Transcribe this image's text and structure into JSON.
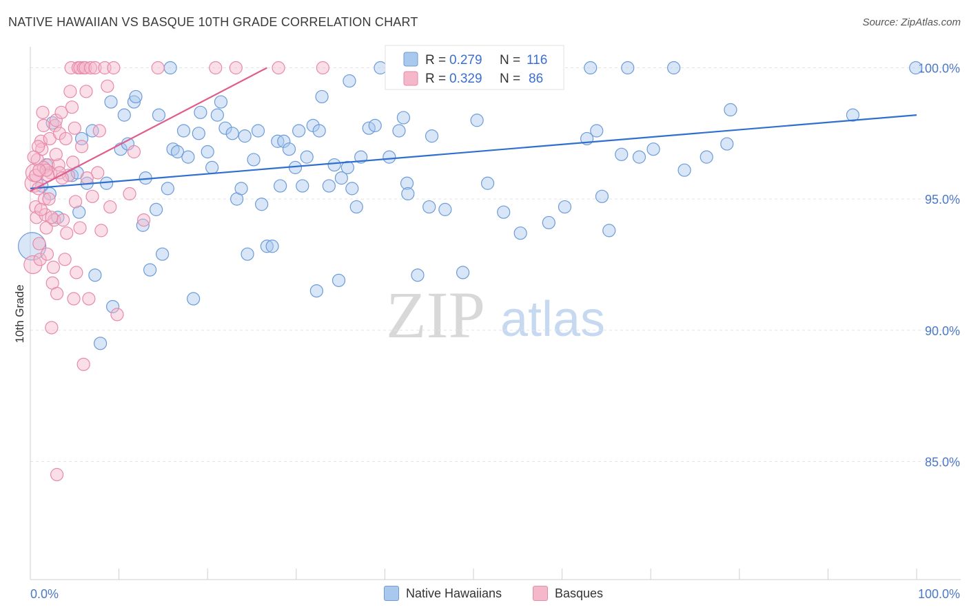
{
  "header": {
    "title": "NATIVE HAWAIIAN VS BASQUE 10TH GRADE CORRELATION CHART",
    "source": "Source: ZipAtlas.com"
  },
  "watermark": {
    "zip": "ZIP",
    "atlas": "atlas"
  },
  "colors": {
    "blue_fill": "#a9c8ee",
    "blue_stroke": "#6b9bd8",
    "blue_line": "#2f6fcf",
    "pink_fill": "#f5b8cb",
    "pink_stroke": "#e889a8",
    "pink_line": "#e05c8c",
    "tick": "#4a78c8"
  },
  "legend": {
    "r_label": "R =",
    "n_label": "N =",
    "items": [
      {
        "name": "Native Hawaiians",
        "r": "0.279",
        "n": "116"
      },
      {
        "name": "Basques",
        "r": "0.329",
        "n": "86"
      }
    ]
  },
  "chart_data": {
    "type": "scatter",
    "title": "NATIVE HAWAIIAN VS BASQUE 10TH GRADE CORRELATION CHART",
    "xlabel": "",
    "ylabel": "10th Grade",
    "xlim": [
      0,
      100
    ],
    "ylim": [
      80.5,
      100.8
    ],
    "x_tick_labels": [
      "0.0%",
      "100.0%"
    ],
    "y_ticks": [
      85,
      90,
      95,
      100
    ],
    "y_tick_labels": [
      "85.0%",
      "90.0%",
      "95.0%",
      "100.0%"
    ],
    "grid": true,
    "legend_position": "top-center",
    "series": [
      {
        "name": "Native Hawaiians",
        "r": 0.279,
        "n": 116,
        "trend": {
          "x": [
            0,
            100
          ],
          "y": [
            95.4,
            98.2
          ]
        },
        "points": [
          [
            0.2,
            93.2,
            3
          ],
          [
            1.3,
            95.5,
            1
          ],
          [
            1.8,
            96.3,
            1
          ],
          [
            2.2,
            95.2,
            1
          ],
          [
            2.5,
            97.9,
            1
          ],
          [
            3.1,
            94.3,
            1
          ],
          [
            4.7,
            95.9,
            1
          ],
          [
            5.3,
            96.0,
            1
          ],
          [
            5.5,
            94.5,
            1
          ],
          [
            5.8,
            97.3,
            1
          ],
          [
            6.4,
            95.6,
            1
          ],
          [
            7.0,
            97.6,
            1
          ],
          [
            7.3,
            92.1,
            1
          ],
          [
            7.9,
            89.5,
            1
          ],
          [
            8.6,
            95.6,
            1
          ],
          [
            9.1,
            98.7,
            1
          ],
          [
            9.3,
            90.9,
            1
          ],
          [
            10.2,
            96.9,
            1
          ],
          [
            10.6,
            98.2,
            1
          ],
          [
            11.0,
            97.1,
            1
          ],
          [
            11.7,
            98.7,
            1
          ],
          [
            11.9,
            98.9,
            1
          ],
          [
            12.7,
            94.0,
            1
          ],
          [
            13.0,
            95.8,
            1
          ],
          [
            13.5,
            92.3,
            1
          ],
          [
            14.2,
            94.6,
            1
          ],
          [
            14.5,
            98.2,
            1
          ],
          [
            14.9,
            92.9,
            1
          ],
          [
            15.5,
            95.4,
            1
          ],
          [
            15.8,
            100.0,
            1
          ],
          [
            16.1,
            96.9,
            1
          ],
          [
            16.6,
            96.8,
            1
          ],
          [
            17.3,
            97.6,
            1
          ],
          [
            17.8,
            96.6,
            1
          ],
          [
            18.4,
            91.2,
            1
          ],
          [
            19.0,
            97.5,
            1
          ],
          [
            19.2,
            98.3,
            1
          ],
          [
            20.0,
            96.8,
            1
          ],
          [
            20.5,
            96.2,
            1
          ],
          [
            21.1,
            98.2,
            1
          ],
          [
            21.5,
            98.7,
            1
          ],
          [
            22.0,
            97.7,
            1
          ],
          [
            22.8,
            97.5,
            1
          ],
          [
            23.3,
            95.0,
            1
          ],
          [
            23.8,
            95.4,
            1
          ],
          [
            24.2,
            97.4,
            1
          ],
          [
            24.5,
            92.9,
            1
          ],
          [
            25.2,
            96.5,
            1
          ],
          [
            25.7,
            97.6,
            1
          ],
          [
            26.1,
            94.8,
            1
          ],
          [
            26.7,
            93.2,
            1
          ],
          [
            27.3,
            93.2,
            1
          ],
          [
            27.9,
            97.2,
            1
          ],
          [
            28.2,
            95.5,
            1
          ],
          [
            28.6,
            97.2,
            1
          ],
          [
            29.2,
            96.9,
            1
          ],
          [
            29.9,
            96.2,
            1
          ],
          [
            30.3,
            97.6,
            1
          ],
          [
            30.7,
            95.5,
            1
          ],
          [
            31.2,
            96.6,
            1
          ],
          [
            31.9,
            97.8,
            1
          ],
          [
            32.3,
            91.5,
            1
          ],
          [
            32.9,
            98.9,
            1
          ],
          [
            32.6,
            97.6,
            1
          ],
          [
            33.7,
            95.5,
            1
          ],
          [
            34.3,
            96.3,
            1
          ],
          [
            34.8,
            91.9,
            1
          ],
          [
            35.1,
            95.8,
            1
          ],
          [
            35.8,
            96.2,
            1
          ],
          [
            36.3,
            95.4,
            1
          ],
          [
            36.8,
            94.7,
            1
          ],
          [
            37.3,
            96.6,
            1
          ],
          [
            38.2,
            97.7,
            1
          ],
          [
            38.9,
            97.8,
            1
          ],
          [
            39.5,
            100.0,
            1
          ],
          [
            40.5,
            96.6,
            1
          ],
          [
            41.6,
            97.6,
            1
          ],
          [
            42.1,
            98.1,
            1
          ],
          [
            42.5,
            95.6,
            1
          ],
          [
            42.6,
            95.2,
            1
          ],
          [
            43.7,
            92.1,
            1
          ],
          [
            45.0,
            94.7,
            1
          ],
          [
            45.3,
            97.4,
            1
          ],
          [
            46.8,
            94.6,
            1
          ],
          [
            48.8,
            92.2,
            1
          ],
          [
            50.4,
            98.0,
            1
          ],
          [
            51.6,
            95.6,
            1
          ],
          [
            53.4,
            94.5,
            1
          ],
          [
            55.3,
            93.7,
            1
          ],
          [
            56.9,
            100.0,
            1
          ],
          [
            58.5,
            94.1,
            1
          ],
          [
            59.1,
            100.0,
            1
          ],
          [
            60.3,
            94.7,
            1
          ],
          [
            62.8,
            97.3,
            1
          ],
          [
            63.2,
            100.0,
            1
          ],
          [
            63.9,
            97.6,
            1
          ],
          [
            64.5,
            95.1,
            1
          ],
          [
            65.3,
            93.8,
            1
          ],
          [
            66.7,
            96.7,
            1
          ],
          [
            67.4,
            100.0,
            1
          ],
          [
            68.7,
            96.6,
            1
          ],
          [
            70.3,
            96.9,
            1
          ],
          [
            73.8,
            96.1,
            1
          ],
          [
            72.6,
            100.0,
            1
          ],
          [
            76.3,
            96.6,
            1
          ],
          [
            78.6,
            97.1,
            1
          ],
          [
            79.0,
            98.4,
            1
          ],
          [
            92.8,
            98.2,
            1
          ],
          [
            99.9,
            100.0,
            1
          ],
          [
            36.0,
            99.5,
            1
          ]
        ]
      },
      {
        "name": "Basques",
        "r": 0.329,
        "n": 86,
        "trend": {
          "x": [
            0,
            26.7
          ],
          "y": [
            95.3,
            100.0
          ]
        },
        "points": [
          [
            0.3,
            92.5,
            2
          ],
          [
            0.4,
            95.6,
            2
          ],
          [
            0.5,
            96.0,
            2
          ],
          [
            0.6,
            94.7,
            1
          ],
          [
            0.7,
            94.3,
            1
          ],
          [
            0.8,
            96.5,
            1
          ],
          [
            0.9,
            95.4,
            1
          ],
          [
            1.0,
            93.3,
            1
          ],
          [
            1.1,
            92.7,
            1
          ],
          [
            1.2,
            97.2,
            1
          ],
          [
            1.3,
            96.9,
            1
          ],
          [
            1.4,
            98.3,
            1
          ],
          [
            1.5,
            97.8,
            1
          ],
          [
            1.6,
            95.0,
            1
          ],
          [
            1.7,
            94.4,
            1
          ],
          [
            1.8,
            93.9,
            1
          ],
          [
            1.9,
            92.9,
            1
          ],
          [
            2.0,
            96.3,
            1
          ],
          [
            2.1,
            95.0,
            1
          ],
          [
            2.2,
            97.3,
            1
          ],
          [
            2.3,
            96.0,
            1
          ],
          [
            2.4,
            90.1,
            1
          ],
          [
            2.5,
            91.8,
            1
          ],
          [
            2.6,
            92.4,
            1
          ],
          [
            2.7,
            94.2,
            1
          ],
          [
            2.8,
            97.8,
            1
          ],
          [
            2.9,
            98.0,
            1
          ],
          [
            3.0,
            91.4,
            1
          ],
          [
            3.2,
            96.3,
            1
          ],
          [
            3.3,
            97.5,
            1
          ],
          [
            3.5,
            98.3,
            1
          ],
          [
            3.7,
            94.2,
            1
          ],
          [
            3.9,
            92.7,
            1
          ],
          [
            4.1,
            93.7,
            1
          ],
          [
            4.3,
            95.9,
            1
          ],
          [
            4.5,
            99.1,
            1
          ],
          [
            4.6,
            100.0,
            1
          ],
          [
            4.7,
            98.5,
            1
          ],
          [
            4.9,
            91.2,
            1
          ],
          [
            5.0,
            97.7,
            1
          ],
          [
            5.1,
            94.9,
            1
          ],
          [
            5.2,
            92.2,
            1
          ],
          [
            5.4,
            100.0,
            1
          ],
          [
            5.6,
            100.0,
            1
          ],
          [
            5.8,
            97.0,
            1
          ],
          [
            6.0,
            100.0,
            1
          ],
          [
            6.2,
            100.0,
            1
          ],
          [
            6.3,
            99.1,
            1
          ],
          [
            6.4,
            95.8,
            1
          ],
          [
            6.6,
            91.2,
            1
          ],
          [
            6.8,
            100.0,
            1
          ],
          [
            7.0,
            95.1,
            1
          ],
          [
            7.3,
            100.0,
            1
          ],
          [
            7.8,
            97.6,
            1
          ],
          [
            8.0,
            93.8,
            1
          ],
          [
            8.4,
            100.0,
            1
          ],
          [
            8.7,
            99.3,
            1
          ],
          [
            9.0,
            94.7,
            1
          ],
          [
            9.4,
            100.0,
            1
          ],
          [
            9.8,
            90.6,
            1
          ],
          [
            11.2,
            95.2,
            1
          ],
          [
            11.7,
            96.8,
            1
          ],
          [
            12.8,
            94.2,
            1
          ],
          [
            14.4,
            100.0,
            1
          ],
          [
            20.9,
            100.0,
            1
          ],
          [
            23.2,
            100.0,
            1
          ],
          [
            28.0,
            100.0,
            1
          ],
          [
            33.0,
            100.0,
            1
          ],
          [
            3.0,
            84.5,
            1
          ],
          [
            6.0,
            88.7,
            1
          ],
          [
            0.9,
            97.0,
            1
          ],
          [
            1.5,
            96.2,
            1
          ],
          [
            2.0,
            95.9,
            1
          ],
          [
            3.3,
            96.0,
            1
          ],
          [
            4.0,
            97.3,
            1
          ],
          [
            0.6,
            95.9,
            1
          ],
          [
            1.2,
            94.6,
            1
          ],
          [
            2.4,
            94.3,
            1
          ],
          [
            5.6,
            93.9,
            1
          ],
          [
            0.4,
            96.6,
            1
          ],
          [
            1.8,
            96.1,
            1
          ],
          [
            3.6,
            95.8,
            1
          ],
          [
            2.9,
            96.7,
            1
          ],
          [
            4.8,
            96.4,
            1
          ],
          [
            7.6,
            96.0,
            1
          ],
          [
            1.0,
            96.1,
            1
          ]
        ]
      }
    ]
  }
}
